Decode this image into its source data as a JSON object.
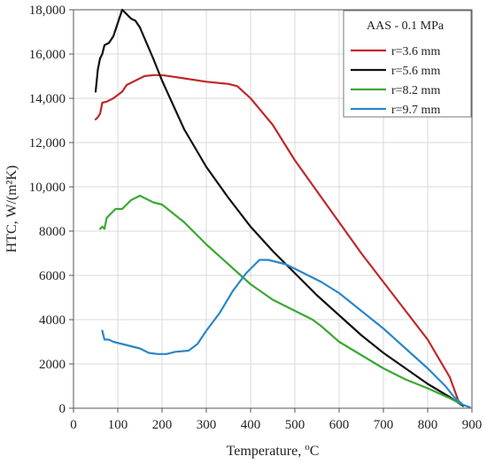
{
  "chart_data": {
    "type": "line",
    "title": "",
    "xlabel": "Temperature, ",
    "xlabel_unit": "oC",
    "ylabel": "HTC, W/(m²K)",
    "xlim": [
      0,
      900
    ],
    "ylim": [
      0,
      18000
    ],
    "x_ticks": [
      0,
      100,
      200,
      300,
      400,
      500,
      600,
      700,
      800,
      900
    ],
    "x_tick_labels": [
      "0",
      "100",
      "200",
      "300",
      "400",
      "500",
      "600",
      "700",
      "800",
      "900"
    ],
    "y_ticks": [
      0,
      2000,
      4000,
      6000,
      8000,
      10000,
      12000,
      14000,
      16000,
      18000
    ],
    "y_tick_labels": [
      "0",
      "2000",
      "4000",
      "6000",
      "8000",
      "10,000",
      "12,000",
      "14,000",
      "16,000",
      "18,000"
    ],
    "grid": true,
    "legend_title": "AAS - 0.1 MPa",
    "legend_position": "top-right",
    "series": [
      {
        "name": "r=3.6 mm",
        "color": "#c0282a",
        "points": [
          [
            50,
            13050
          ],
          [
            55,
            13150
          ],
          [
            60,
            13300
          ],
          [
            65,
            13800
          ],
          [
            75,
            13850
          ],
          [
            90,
            14000
          ],
          [
            110,
            14300
          ],
          [
            120,
            14600
          ],
          [
            140,
            14800
          ],
          [
            160,
            15000
          ],
          [
            180,
            15050
          ],
          [
            200,
            15050
          ],
          [
            250,
            14900
          ],
          [
            300,
            14750
          ],
          [
            350,
            14650
          ],
          [
            370,
            14550
          ],
          [
            400,
            14000
          ],
          [
            450,
            12800
          ],
          [
            500,
            11200
          ],
          [
            550,
            9800
          ],
          [
            600,
            8400
          ],
          [
            650,
            7000
          ],
          [
            700,
            5700
          ],
          [
            750,
            4400
          ],
          [
            800,
            3100
          ],
          [
            850,
            1400
          ],
          [
            870,
            300
          ],
          [
            880,
            100
          ]
        ]
      },
      {
        "name": "r=5.6 mm",
        "color": "#111111",
        "points": [
          [
            50,
            14300
          ],
          [
            55,
            15300
          ],
          [
            60,
            15800
          ],
          [
            65,
            16000
          ],
          [
            70,
            16400
          ],
          [
            80,
            16500
          ],
          [
            90,
            16800
          ],
          [
            100,
            17400
          ],
          [
            110,
            18000
          ],
          [
            120,
            17800
          ],
          [
            130,
            17600
          ],
          [
            140,
            17500
          ],
          [
            150,
            17200
          ],
          [
            180,
            15800
          ],
          [
            200,
            14800
          ],
          [
            250,
            12600
          ],
          [
            300,
            10900
          ],
          [
            350,
            9500
          ],
          [
            400,
            8200
          ],
          [
            450,
            7100
          ],
          [
            500,
            6100
          ],
          [
            550,
            5100
          ],
          [
            600,
            4200
          ],
          [
            650,
            3300
          ],
          [
            700,
            2500
          ],
          [
            750,
            1800
          ],
          [
            800,
            1100
          ],
          [
            850,
            500
          ],
          [
            880,
            100
          ]
        ]
      },
      {
        "name": "r=8.2 mm",
        "color": "#3aa832",
        "points": [
          [
            60,
            8100
          ],
          [
            65,
            8200
          ],
          [
            70,
            8100
          ],
          [
            75,
            8600
          ],
          [
            85,
            8800
          ],
          [
            95,
            9000
          ],
          [
            110,
            9000
          ],
          [
            130,
            9400
          ],
          [
            150,
            9600
          ],
          [
            160,
            9500
          ],
          [
            180,
            9300
          ],
          [
            200,
            9200
          ],
          [
            250,
            8400
          ],
          [
            300,
            7400
          ],
          [
            350,
            6500
          ],
          [
            400,
            5600
          ],
          [
            450,
            4900
          ],
          [
            500,
            4400
          ],
          [
            540,
            4000
          ],
          [
            560,
            3700
          ],
          [
            600,
            3000
          ],
          [
            650,
            2400
          ],
          [
            700,
            1800
          ],
          [
            750,
            1300
          ],
          [
            800,
            900
          ],
          [
            850,
            450
          ],
          [
            880,
            150
          ]
        ]
      },
      {
        "name": "r=9.7 mm",
        "color": "#2a86c8",
        "points": [
          [
            65,
            3500
          ],
          [
            70,
            3100
          ],
          [
            80,
            3100
          ],
          [
            90,
            3000
          ],
          [
            110,
            2900
          ],
          [
            130,
            2800
          ],
          [
            150,
            2700
          ],
          [
            170,
            2500
          ],
          [
            190,
            2450
          ],
          [
            210,
            2450
          ],
          [
            230,
            2550
          ],
          [
            260,
            2600
          ],
          [
            280,
            2900
          ],
          [
            300,
            3500
          ],
          [
            330,
            4300
          ],
          [
            360,
            5300
          ],
          [
            390,
            6100
          ],
          [
            420,
            6700
          ],
          [
            440,
            6700
          ],
          [
            480,
            6500
          ],
          [
            520,
            6100
          ],
          [
            560,
            5700
          ],
          [
            600,
            5200
          ],
          [
            650,
            4400
          ],
          [
            700,
            3600
          ],
          [
            750,
            2700
          ],
          [
            800,
            1800
          ],
          [
            840,
            1000
          ],
          [
            860,
            500
          ],
          [
            880,
            150
          ],
          [
            895,
            50
          ]
        ]
      }
    ]
  }
}
